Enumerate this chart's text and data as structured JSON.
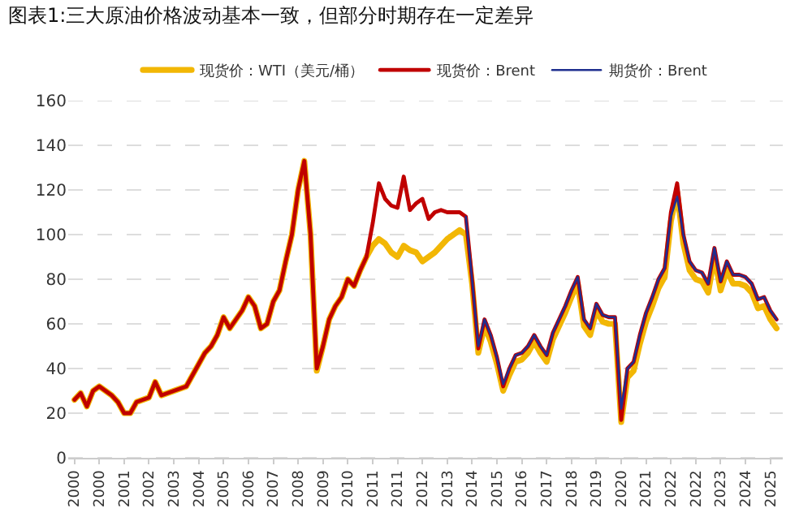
{
  "chart_data": {
    "type": "line",
    "title": "图表1:三大原油价格波动基本一致，但部分时期存在一定差异",
    "categories": [
      "2000",
      null,
      null,
      null,
      "2000",
      null,
      null,
      null,
      "2001",
      null,
      null,
      null,
      "2002",
      null,
      null,
      null,
      "2003",
      null,
      null,
      null,
      "2004",
      null,
      null,
      null,
      "2005",
      null,
      null,
      null,
      "2006",
      null,
      null,
      null,
      "2007",
      null,
      null,
      null,
      "2008",
      null,
      null,
      null,
      "2009",
      null,
      null,
      null,
      "2010",
      null,
      null,
      null,
      "2011",
      null,
      null,
      null,
      "2011",
      null,
      null,
      null,
      "2012",
      null,
      null,
      null,
      "2013",
      null,
      null,
      null,
      "2014",
      null,
      null,
      null,
      "2015",
      null,
      null,
      null,
      "2016",
      null,
      null,
      null,
      "2017",
      null,
      null,
      null,
      "2018",
      null,
      null,
      null,
      "2019",
      null,
      null,
      null,
      "2020",
      null,
      null,
      null,
      "2021",
      null,
      null,
      null,
      "2022",
      null,
      null,
      null,
      "2022",
      null,
      null,
      null,
      "2023",
      null,
      null,
      null,
      "2024",
      null,
      null,
      null,
      "2025",
      null
    ],
    "series": [
      {
        "name": "现货价：WTI（美元/桶）",
        "color": "#f2b705",
        "values": [
          26,
          29,
          23,
          30,
          32,
          30,
          28,
          25,
          20,
          20,
          25,
          26,
          27,
          34,
          28,
          29,
          30,
          31,
          32,
          37,
          42,
          47,
          50,
          55,
          63,
          58,
          62,
          66,
          72,
          68,
          58,
          60,
          70,
          75,
          88,
          100,
          120,
          133,
          100,
          39,
          50,
          62,
          68,
          72,
          80,
          77,
          84,
          90,
          95,
          98,
          96,
          92,
          90,
          95,
          93,
          92,
          88,
          90,
          92,
          95,
          98,
          100,
          102,
          100,
          78,
          47,
          59,
          52,
          42,
          30,
          37,
          43,
          44,
          47,
          52,
          47,
          43,
          53,
          59,
          65,
          72,
          78,
          59,
          55,
          66,
          61,
          60,
          60,
          16,
          36,
          39,
          51,
          61,
          68,
          76,
          81,
          106,
          119,
          96,
          84,
          80,
          79,
          74,
          90,
          75,
          84,
          78,
          78,
          77,
          74,
          67,
          68,
          62,
          58
        ]
      },
      {
        "name": "现货价：Brent",
        "color": "#c00000",
        "values": [
          26,
          29,
          23,
          30,
          32,
          30,
          28,
          25,
          20,
          20,
          25,
          26,
          27,
          34,
          28,
          29,
          30,
          31,
          32,
          37,
          42,
          47,
          50,
          55,
          63,
          58,
          62,
          66,
          72,
          68,
          58,
          60,
          70,
          75,
          88,
          100,
          120,
          133,
          100,
          40,
          50,
          62,
          68,
          72,
          80,
          77,
          84,
          90,
          105,
          123,
          116,
          113,
          112,
          126,
          111,
          114,
          116,
          107,
          110,
          111,
          110,
          110,
          110,
          108,
          80,
          49,
          62,
          55,
          45,
          32,
          40,
          46,
          47,
          50,
          55,
          50,
          46,
          56,
          62,
          68,
          75,
          81,
          62,
          58,
          69,
          64,
          63,
          63,
          17,
          40,
          43,
          55,
          65,
          72,
          80,
          85,
          110,
          123,
          100,
          88,
          84,
          83,
          78,
          94,
          79,
          88,
          82,
          82,
          81,
          78,
          71,
          72,
          66,
          62
        ]
      },
      {
        "name": "期货价：Brent",
        "color": "#1f2f8f",
        "values": [
          null,
          null,
          null,
          null,
          null,
          null,
          null,
          null,
          null,
          null,
          null,
          null,
          null,
          null,
          null,
          null,
          null,
          null,
          null,
          null,
          null,
          null,
          null,
          null,
          null,
          null,
          null,
          null,
          null,
          null,
          null,
          null,
          null,
          null,
          null,
          null,
          null,
          null,
          null,
          null,
          null,
          null,
          null,
          null,
          null,
          null,
          null,
          null,
          null,
          null,
          null,
          null,
          null,
          null,
          null,
          null,
          null,
          null,
          null,
          null,
          null,
          null,
          null,
          108,
          80,
          50,
          62,
          55,
          45,
          33,
          40,
          46,
          47,
          50,
          55,
          50,
          46,
          56,
          62,
          68,
          75,
          81,
          62,
          58,
          69,
          64,
          63,
          63,
          22,
          40,
          43,
          55,
          65,
          72,
          80,
          85,
          108,
          117,
          100,
          88,
          84,
          83,
          78,
          94,
          79,
          88,
          82,
          82,
          81,
          78,
          71,
          72,
          66,
          62
        ]
      }
    ],
    "ylim": [
      0,
      160
    ],
    "yticks": [
      0,
      20,
      40,
      60,
      80,
      100,
      120,
      140,
      160
    ],
    "grid": "y",
    "legend": "top",
    "line_style": "solid"
  }
}
